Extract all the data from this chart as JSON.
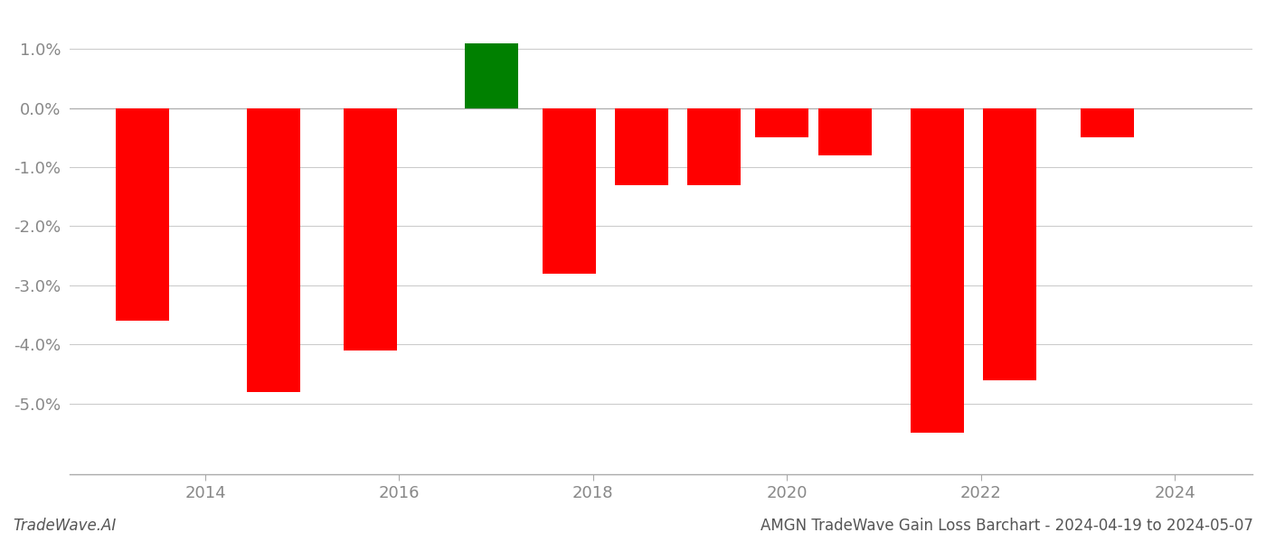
{
  "x_positions": [
    2013.35,
    2014.7,
    2015.7,
    2016.95,
    2017.75,
    2018.5,
    2019.25,
    2019.95,
    2020.6,
    2021.55,
    2022.3,
    2023.3
  ],
  "values": [
    -0.036,
    -0.048,
    -0.041,
    0.011,
    -0.028,
    -0.013,
    -0.013,
    -0.005,
    -0.008,
    -0.055,
    -0.046,
    -0.005
  ],
  "colors": [
    "#ff0000",
    "#ff0000",
    "#ff0000",
    "#008000",
    "#ff0000",
    "#ff0000",
    "#ff0000",
    "#ff0000",
    "#ff0000",
    "#ff0000",
    "#ff0000",
    "#ff0000"
  ],
  "bar_width": 0.55,
  "ylim": [
    -0.062,
    0.016
  ],
  "yticks": [
    -0.05,
    -0.04,
    -0.03,
    -0.02,
    -0.01,
    0.0,
    0.01
  ],
  "xticks": [
    2014,
    2016,
    2018,
    2020,
    2022,
    2024
  ],
  "xlim": [
    2012.6,
    2024.8
  ],
  "title": "AMGN TradeWave Gain Loss Barchart - 2024-04-19 to 2024-05-07",
  "footer_left": "TradeWave.AI",
  "background_color": "#ffffff",
  "grid_color": "#cccccc",
  "tick_color": "#888888",
  "footer_color": "#555555"
}
